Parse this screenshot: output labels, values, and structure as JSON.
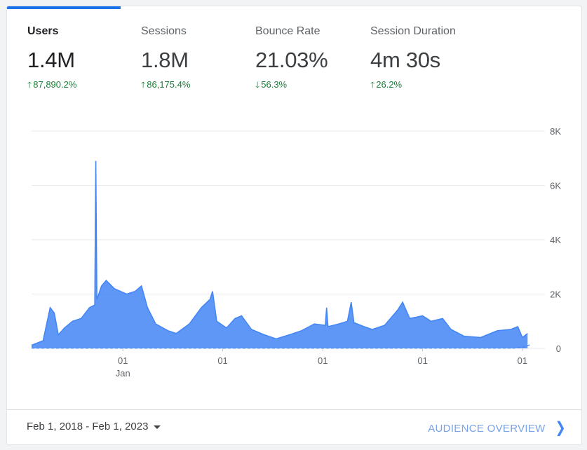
{
  "metrics": [
    {
      "label": "Users",
      "value": "1.4M",
      "change": "87,890.2%",
      "direction": "up",
      "active": true
    },
    {
      "label": "Sessions",
      "value": "1.8M",
      "change": "86,175.4%",
      "direction": "up",
      "active": false
    },
    {
      "label": "Bounce Rate",
      "value": "21.03%",
      "change": "56.3%",
      "direction": "down",
      "active": false
    },
    {
      "label": "Session Duration",
      "value": "4m 30s",
      "change": "26.2%",
      "direction": "up",
      "active": false
    }
  ],
  "icons": {
    "up": "arrow-up-icon",
    "down": "arrow-down-icon",
    "dropdown": "caret-down-icon",
    "forward": "chevron-right-icon"
  },
  "colors": {
    "accent": "#1a73e8",
    "series": "#4285f4",
    "positive": "#188038"
  },
  "chart_data": {
    "type": "area",
    "y_ticks": [
      "0",
      "2K",
      "4K",
      "6K",
      "8K"
    ],
    "ylim": [
      0,
      8000
    ],
    "x_ticks": [
      {
        "label": "01",
        "sublabel": "Jan",
        "date": "2019-01-01"
      },
      {
        "label": "01",
        "sublabel": "",
        "date": "2020-01-01"
      },
      {
        "label": "01",
        "sublabel": "",
        "date": "2021-01-01"
      },
      {
        "label": "01",
        "sublabel": "",
        "date": "2022-01-01"
      },
      {
        "label": "01",
        "sublabel": "",
        "date": "2023-01-01"
      }
    ],
    "xlim": [
      "2018-02-01",
      "2023-02-01"
    ],
    "grid": true,
    "series": [
      {
        "points": [
          [
            "2018-02-01",
            120
          ],
          [
            "2018-03-15",
            280
          ],
          [
            "2018-04-10",
            1500
          ],
          [
            "2018-04-25",
            1300
          ],
          [
            "2018-05-10",
            500
          ],
          [
            "2018-06-01",
            750
          ],
          [
            "2018-07-01",
            1000
          ],
          [
            "2018-08-01",
            1100
          ],
          [
            "2018-09-01",
            1500
          ],
          [
            "2018-09-20",
            1600
          ],
          [
            "2018-09-24",
            6900
          ],
          [
            "2018-09-28",
            1800
          ],
          [
            "2018-10-15",
            2300
          ],
          [
            "2018-11-01",
            2500
          ],
          [
            "2018-12-01",
            2200
          ],
          [
            "2019-01-15",
            2000
          ],
          [
            "2019-02-15",
            2100
          ],
          [
            "2019-03-10",
            2300
          ],
          [
            "2019-04-01",
            1500
          ],
          [
            "2019-05-01",
            900
          ],
          [
            "2019-06-15",
            650
          ],
          [
            "2019-07-15",
            550
          ],
          [
            "2019-09-01",
            900
          ],
          [
            "2019-10-15",
            1500
          ],
          [
            "2019-11-15",
            1800
          ],
          [
            "2019-11-25",
            2100
          ],
          [
            "2019-12-10",
            1000
          ],
          [
            "2020-01-15",
            750
          ],
          [
            "2020-02-15",
            1100
          ],
          [
            "2020-03-10",
            1200
          ],
          [
            "2020-04-15",
            700
          ],
          [
            "2020-06-01",
            500
          ],
          [
            "2020-07-15",
            350
          ],
          [
            "2020-09-01",
            500
          ],
          [
            "2020-10-15",
            650
          ],
          [
            "2020-12-01",
            900
          ],
          [
            "2021-01-10",
            850
          ],
          [
            "2021-01-15",
            1500
          ],
          [
            "2021-01-20",
            800
          ],
          [
            "2021-03-01",
            900
          ],
          [
            "2021-04-01",
            1000
          ],
          [
            "2021-04-15",
            1700
          ],
          [
            "2021-04-25",
            950
          ],
          [
            "2021-06-01",
            800
          ],
          [
            "2021-07-01",
            700
          ],
          [
            "2021-08-15",
            850
          ],
          [
            "2021-10-01",
            1400
          ],
          [
            "2021-10-20",
            1700
          ],
          [
            "2021-11-15",
            1100
          ],
          [
            "2022-01-01",
            1200
          ],
          [
            "2022-02-01",
            1000
          ],
          [
            "2022-03-15",
            1100
          ],
          [
            "2022-04-15",
            700
          ],
          [
            "2022-06-01",
            450
          ],
          [
            "2022-08-01",
            400
          ],
          [
            "2022-10-01",
            650
          ],
          [
            "2022-11-20",
            700
          ],
          [
            "2022-12-15",
            800
          ],
          [
            "2023-01-01",
            400
          ],
          [
            "2023-01-20",
            550
          ]
        ]
      },
      {
        "points": [
          [
            "2018-02-01",
            5
          ],
          [
            "2022-12-01",
            5
          ],
          [
            "2023-01-10",
            60
          ],
          [
            "2023-02-01",
            150
          ]
        ],
        "dashed": true
      }
    ]
  },
  "footer": {
    "date_range": "Feb 1, 2018 - Feb 1, 2023",
    "overview_link": "AUDIENCE OVERVIEW"
  }
}
